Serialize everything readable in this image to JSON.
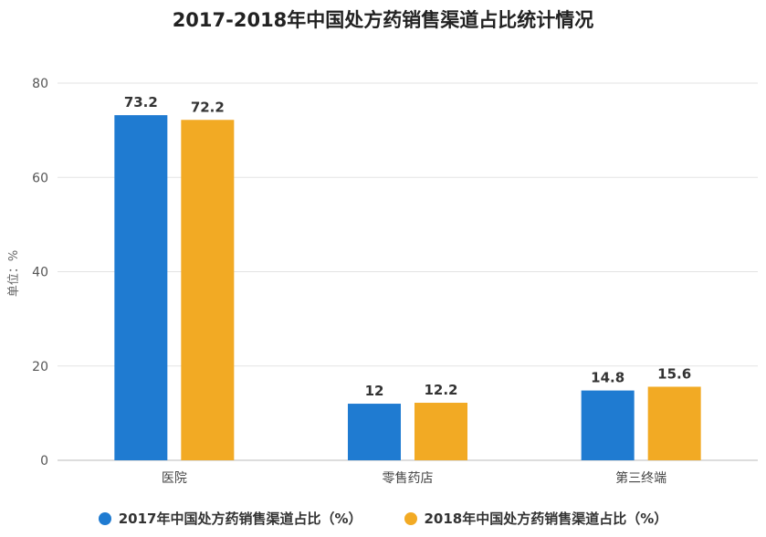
{
  "chart_data": {
    "type": "bar",
    "title": "2017-2018年中国处方药销售渠道占比统计情况",
    "ylabel": "单位：%",
    "xlabel": "",
    "ylim": [
      0,
      80
    ],
    "yticks": [
      0,
      20,
      40,
      60,
      80
    ],
    "categories": [
      "医院",
      "零售药店",
      "第三终端"
    ],
    "series": [
      {
        "name": "2017年中国处方药销售渠道占比（%）",
        "color": "#1f7bd1",
        "values": [
          73.2,
          12,
          14.8
        ]
      },
      {
        "name": "2018年中国处方药销售渠道占比（%）",
        "color": "#f2aa24",
        "values": [
          72.2,
          12.2,
          15.6
        ]
      }
    ],
    "value_labels": [
      [
        "73.2",
        "12",
        "14.8"
      ],
      [
        "72.2",
        "12.2",
        "15.6"
      ]
    ],
    "grid": true,
    "legend_position": "bottom"
  }
}
